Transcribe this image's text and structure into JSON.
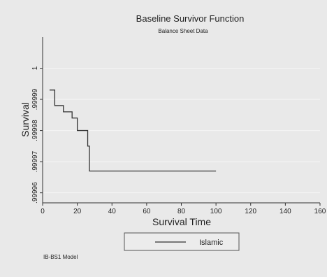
{
  "chart_data": {
    "type": "line",
    "title": "Baseline Survivor Function",
    "subtitle": "Balance Sheet Data",
    "xlabel": "Survival Time",
    "ylabel": "Survival",
    "xlim": [
      0,
      160
    ],
    "ylim": [
      0.999957,
      1.00001
    ],
    "x_ticks": [
      0,
      20,
      40,
      60,
      80,
      100,
      120,
      140,
      160
    ],
    "y_ticks": [
      1,
      0.99999,
      0.99998,
      0.99997,
      0.99996
    ],
    "y_tick_labels": [
      "1",
      ".99999",
      ".99998",
      ".99997",
      ".99996"
    ],
    "grid": "horizontal",
    "legend_position": "bottom",
    "series": [
      {
        "name": "Islamic",
        "step": true,
        "color": "#333333",
        "x": [
          4,
          7,
          12,
          17,
          20,
          26,
          27,
          100
        ],
        "y": [
          0.999993,
          0.999988,
          0.999986,
          0.999984,
          0.99998,
          0.999975,
          0.999967,
          0.999967
        ]
      }
    ]
  },
  "footnote": "IB-BS1 Model",
  "colors": {
    "background": "#e9e9e9",
    "gridline": "#f6f6f6",
    "line": "#333333",
    "legend_bg": "#ececec"
  }
}
